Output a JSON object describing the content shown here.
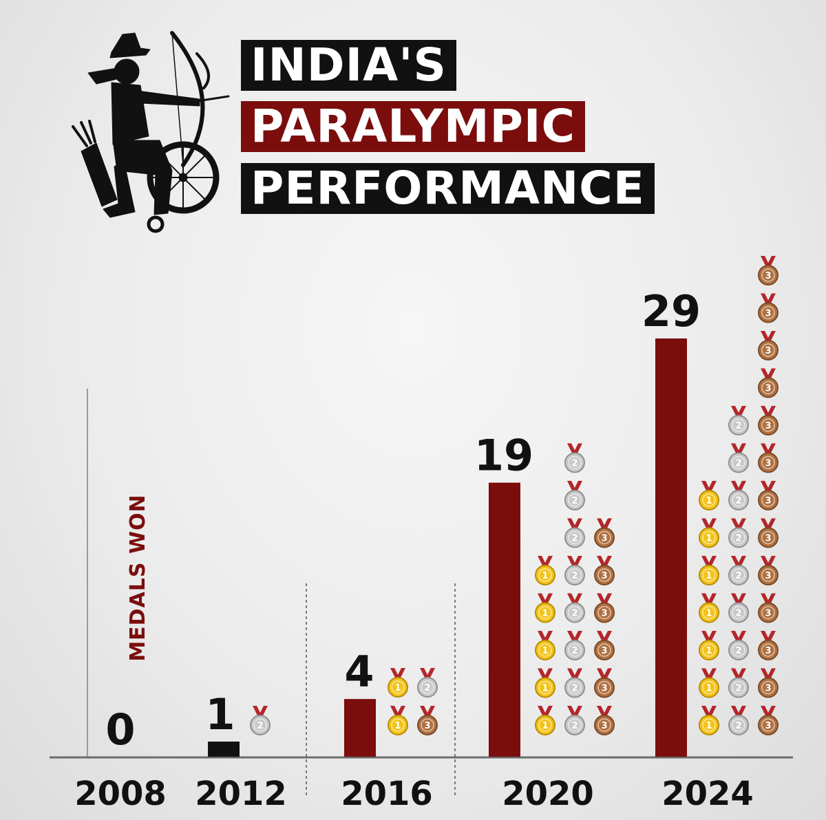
{
  "header": {
    "line1": "INDIA'S",
    "line2": "PARALYMPIC",
    "line3": "PERFORMANCE"
  },
  "colors": {
    "bar": "#7b0d0d",
    "bar_2012": "#111111",
    "gold": "#f2c31b",
    "silver": "#c9c9c9",
    "bronze": "#b07040",
    "ribbon": "#b3262a"
  },
  "logo_icon": "wheelchair-archer-icon",
  "chart_data": {
    "type": "bar",
    "title": "INDIA'S PARALYMPIC PERFORMANCE",
    "ylabel": "MEDALS WON",
    "xlabel": "",
    "categories": [
      "2008",
      "2012",
      "2016",
      "2020",
      "2024"
    ],
    "values": [
      0,
      1,
      4,
      19,
      29
    ],
    "ylim": [
      0,
      29
    ],
    "medals": [
      {
        "year": "2008",
        "gold": 0,
        "silver": 0,
        "bronze": 0
      },
      {
        "year": "2012",
        "gold": 0,
        "silver": 1,
        "bronze": 0
      },
      {
        "year": "2016",
        "gold": 2,
        "silver": 1,
        "bronze": 1
      },
      {
        "year": "2020",
        "gold": 5,
        "silver": 8,
        "bronze": 6
      },
      {
        "year": "2024",
        "gold": 7,
        "silver": 9,
        "bronze": 13
      }
    ],
    "medal_labels": {
      "gold": "1",
      "silver": "2",
      "bronze": "3"
    },
    "grid": false,
    "legend": "none"
  }
}
